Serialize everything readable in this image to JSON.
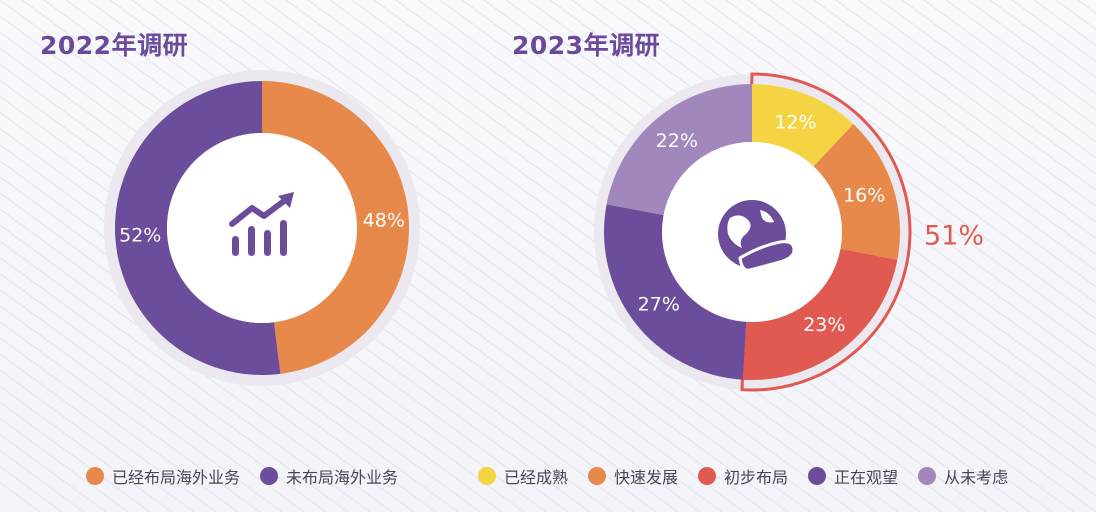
{
  "colors": {
    "title": "#6b4a9b",
    "purple": "#6c4d9c",
    "orange": "#e7894a",
    "yellow": "#f5d444",
    "red": "#e05a52",
    "lavender": "#a287bd",
    "ring_bg": "#e9e6ee"
  },
  "chart_data": [
    {
      "type": "pie",
      "title": "2022年调研",
      "center_icon": "trend-chart-icon",
      "slices": [
        {
          "label": "已经布局海外业务",
          "value": 48,
          "display": "48%",
          "color": "#e7894a"
        },
        {
          "label": "未布局海外业务",
          "value": 52,
          "display": "52%",
          "color": "#6c4d9c"
        }
      ],
      "legend_placement": "bottom"
    },
    {
      "type": "pie",
      "title": "2023年调研",
      "center_icon": "globe-hand-icon",
      "slices": [
        {
          "label": "已经成熟",
          "value": 12,
          "display": "12%",
          "color": "#f5d444"
        },
        {
          "label": "快速发展",
          "value": 16,
          "display": "16%",
          "color": "#e7894a"
        },
        {
          "label": "初步布局",
          "value": 23,
          "display": "23%",
          "color": "#e05a52"
        },
        {
          "label": "正在观望",
          "value": 27,
          "display": "27%",
          "color": "#6c4d9c"
        },
        {
          "label": "从未考虑",
          "value": 22,
          "display": "22%",
          "color": "#a287bd"
        }
      ],
      "annotation": {
        "text": "51%",
        "note_slices": [
          "已经成熟",
          "快速发展",
          "初步布局"
        ]
      },
      "legend_placement": "bottom"
    }
  ]
}
